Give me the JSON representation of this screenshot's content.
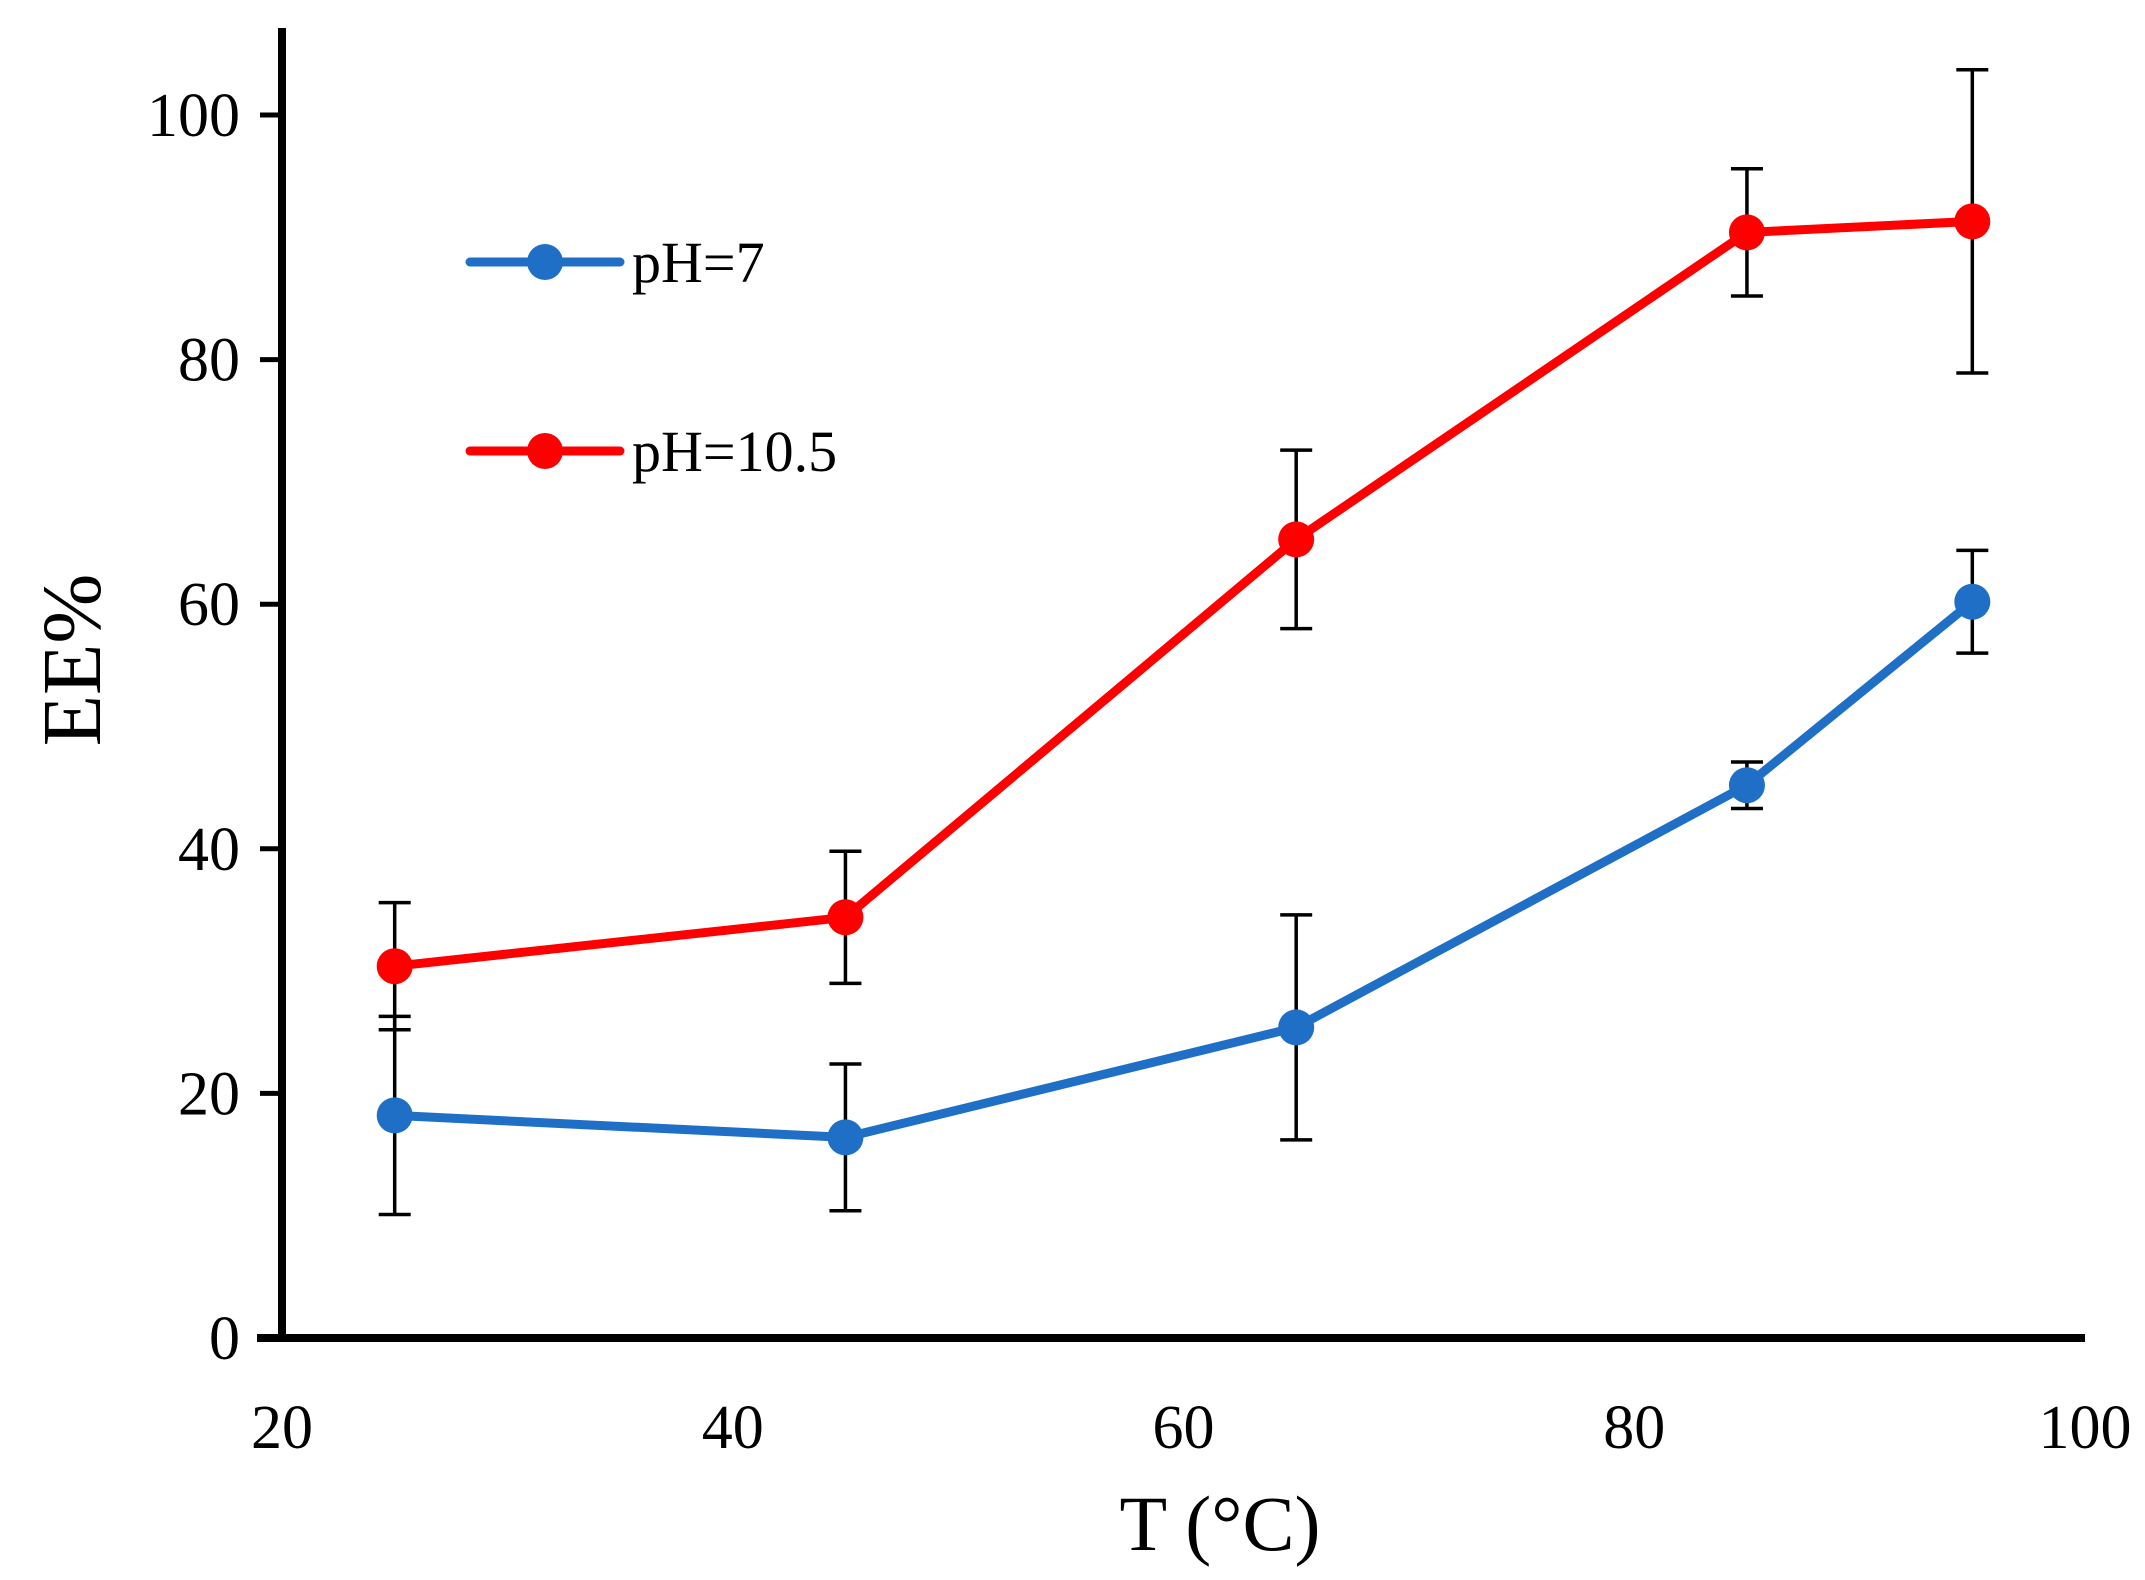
{
  "chart_data": {
    "type": "line",
    "title": "",
    "xlabel": "T (°C)",
    "ylabel": "EE%",
    "xlim": [
      20,
      100
    ],
    "ylim": [
      0,
      100
    ],
    "xticks": [
      20,
      40,
      60,
      80,
      100
    ],
    "yticks": [
      0,
      20,
      40,
      60,
      80,
      100
    ],
    "grid": false,
    "legend_position": "top-left",
    "x": [
      25,
      45,
      65,
      85,
      95
    ],
    "series": [
      {
        "name": "pH=7",
        "color": "#1F6FC6",
        "values": [
          18.2,
          16.4,
          25.4,
          45.2,
          60.2
        ],
        "error": [
          8.1,
          6.0,
          9.2,
          1.9,
          4.2
        ]
      },
      {
        "name": "pH=10.5",
        "color": "#FF0000",
        "values": [
          30.4,
          34.4,
          65.3,
          90.4,
          91.3
        ],
        "error": [
          5.2,
          5.4,
          7.3,
          5.2,
          12.4
        ]
      }
    ]
  }
}
